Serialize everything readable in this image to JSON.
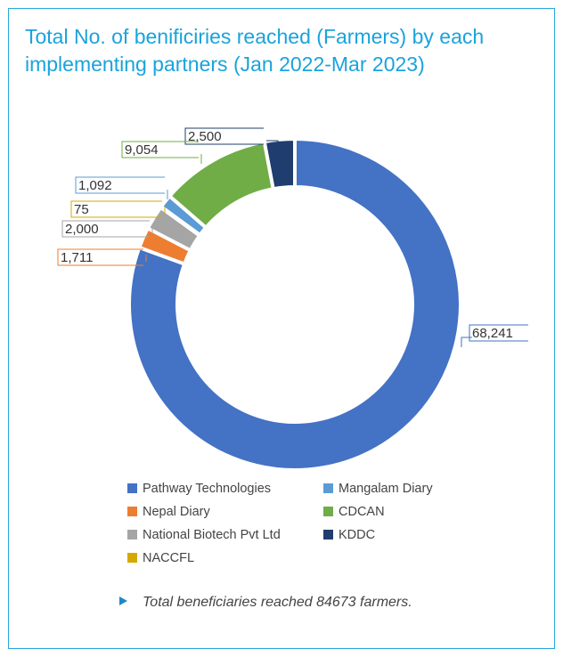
{
  "title": "Total No. of benificiries reached (Farmers) by each implementing partners (Jan 2022-Mar 2023)",
  "note": "Total beneficiaries reached 84673 farmers.",
  "chart_data": {
    "type": "pie",
    "variant": "donut",
    "slices": [
      {
        "name": "KDDC",
        "value": 2500,
        "label": "2,500",
        "color": "#1f3d6e"
      },
      {
        "name": "Pathway Technologies",
        "value": 68241,
        "label": "68,241",
        "color": "#4472c4"
      },
      {
        "name": "Nepal Diary",
        "value": 1711,
        "label": "1,711",
        "color": "#ed7d31"
      },
      {
        "name": "National Biotech Pvt Ltd",
        "value": 2000,
        "label": "2,000",
        "color": "#a5a5a5"
      },
      {
        "name": "NACCFL",
        "value": 75,
        "label": "75",
        "color": "#d4a900"
      },
      {
        "name": "Mangalam Diary",
        "value": 1092,
        "label": "1,092",
        "color": "#5b9bd5"
      },
      {
        "name": "CDCAN",
        "value": 9054,
        "label": "9,054",
        "color": "#70ad47"
      }
    ],
    "legend": [
      {
        "name": "Pathway Technologies",
        "color": "#4472c4"
      },
      {
        "name": "Mangalam Diary",
        "color": "#5b9bd5"
      },
      {
        "name": "Nepal Diary",
        "color": "#ed7d31"
      },
      {
        "name": "CDCAN",
        "color": "#70ad47"
      },
      {
        "name": "National Biotech Pvt Ltd",
        "color": "#a5a5a5"
      },
      {
        "name": "KDDC",
        "color": "#1f3d6e"
      },
      {
        "name": "NACCFL",
        "color": "#d4a900"
      }
    ],
    "legend_position": "bottom"
  }
}
